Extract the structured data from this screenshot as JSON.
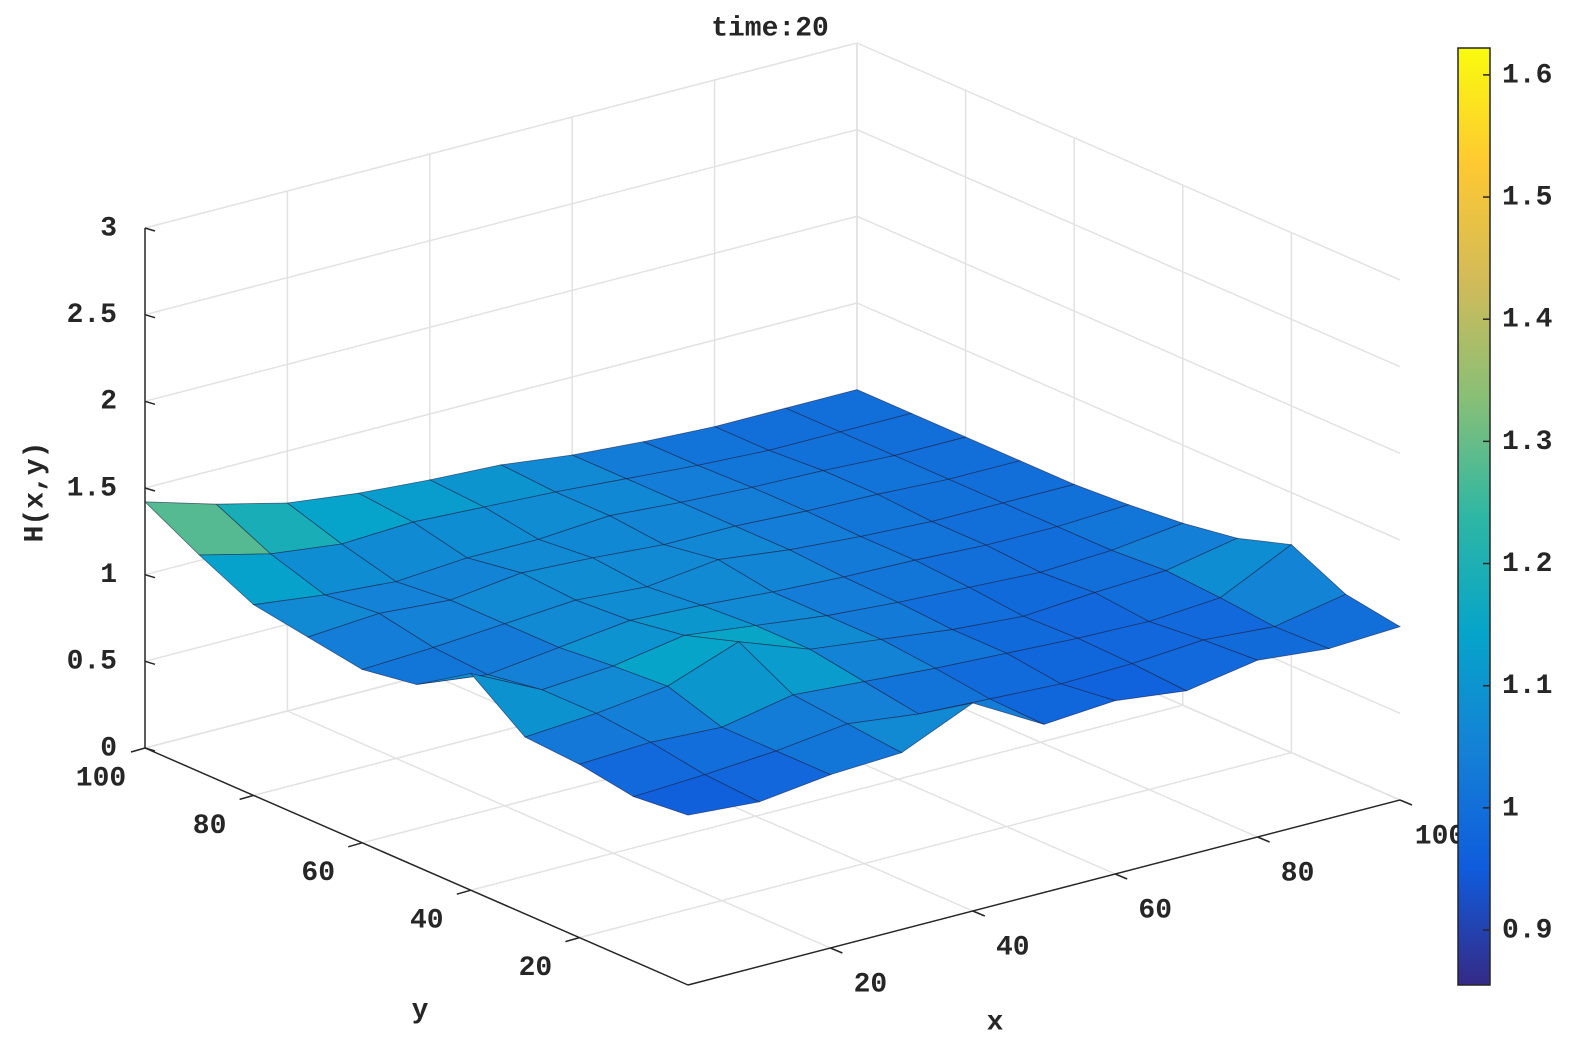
{
  "chart_data": {
    "type": "surface",
    "title": "time:20",
    "xlabel": "x",
    "ylabel": "y",
    "zlabel": "H(x,y)",
    "x": [
      0,
      10,
      20,
      30,
      40,
      50,
      60,
      70,
      80,
      90,
      100
    ],
    "y": [
      0,
      10,
      20,
      30,
      40,
      50,
      60,
      70,
      80,
      90,
      100
    ],
    "z": [
      [
        0.98,
        0.95,
        1.0,
        1.02,
        1.2,
        0.97,
        1.0,
        0.95,
        1.02,
        0.98,
        1.0
      ],
      [
        0.95,
        0.97,
        1.0,
        1.05,
        1.0,
        0.98,
        0.96,
        0.97,
        1.0,
        0.97,
        1.05
      ],
      [
        1.0,
        1.02,
        1.0,
        1.08,
        1.05,
        1.02,
        1.0,
        0.98,
        0.97,
        1.0,
        1.2
      ],
      [
        1.02,
        1.05,
        1.1,
        1.25,
        1.1,
        1.05,
        1.0,
        0.97,
        1.0,
        1.02,
        1.1
      ],
      [
        1.25,
        1.05,
        1.08,
        1.15,
        1.1,
        1.05,
        1.02,
        1.0,
        0.98,
        1.0,
        1.05
      ],
      [
        1.05,
        1.0,
        1.05,
        1.1,
        1.08,
        1.05,
        1.03,
        1.02,
        1.0,
        1.0,
        1.02
      ],
      [
        1.0,
        1.02,
        1.05,
        1.08,
        1.05,
        1.1,
        1.05,
        1.02,
        1.0,
        1.0,
        1.0
      ],
      [
        1.05,
        1.08,
        1.05,
        1.1,
        1.08,
        1.05,
        1.05,
        1.03,
        1.02,
        1.0,
        1.0
      ],
      [
        1.1,
        1.05,
        1.02,
        1.05,
        1.05,
        1.08,
        1.05,
        1.03,
        1.02,
        1.0,
        1.0
      ],
      [
        1.25,
        1.15,
        1.1,
        1.12,
        1.1,
        1.08,
        1.05,
        1.02,
        1.0,
        1.0,
        1.0
      ],
      [
        1.42,
        1.3,
        1.2,
        1.15,
        1.12,
        1.1,
        1.05,
        1.02,
        1.0,
        1.0,
        1.0
      ]
    ],
    "xlim": [
      0,
      100
    ],
    "ylim": [
      0,
      100
    ],
    "zlim": [
      0,
      3
    ],
    "xticks": [
      20,
      40,
      60,
      80,
      100
    ],
    "yticks": [
      20,
      40,
      60,
      80,
      100
    ],
    "zticks": [
      0,
      0.5,
      1,
      1.5,
      2,
      2.5,
      3
    ],
    "clim": [
      0.855,
      1.622
    ],
    "cticks": [
      0.9,
      1,
      1.1,
      1.2,
      1.3,
      1.4,
      1.5,
      1.6
    ],
    "colormap": [
      "#352a87",
      "#0f5cdd",
      "#1481d6",
      "#06a4ca",
      "#2eb7a4",
      "#87bf77",
      "#d1bb59",
      "#fec832",
      "#f9fb0e"
    ],
    "grid": true
  }
}
